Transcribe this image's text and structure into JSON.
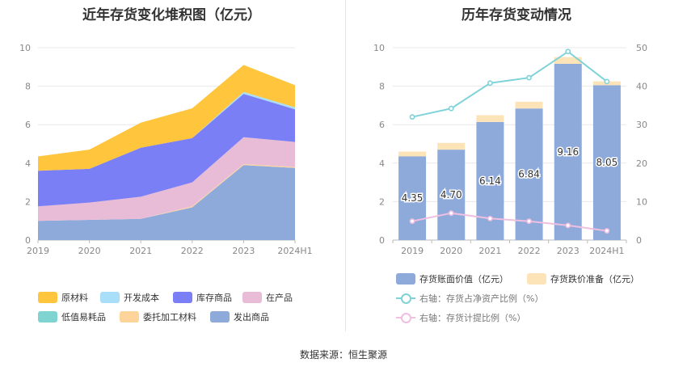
{
  "titles": {
    "left": "近年存货变化堆积图（亿元）",
    "right": "历年存货变动情况"
  },
  "source": "数据来源：恒生聚源",
  "chart_data": [
    {
      "type": "area",
      "title": "近年存货变化堆积图（亿元）",
      "categories": [
        "2019",
        "2020",
        "2021",
        "2022",
        "2023",
        "2024H1"
      ],
      "ylim": [
        0,
        10
      ],
      "yticks": [
        0,
        2,
        4,
        6,
        8,
        10
      ],
      "grid": true,
      "legend_position": "bottom",
      "series": [
        {
          "name": "发出商品",
          "color": "#8eaadb",
          "values": [
            1.0,
            1.05,
            1.1,
            1.7,
            3.9,
            3.75
          ]
        },
        {
          "name": "委托加工材料",
          "color": "#fdd49a",
          "values": [
            0.0,
            0.0,
            0.0,
            0.05,
            0.05,
            0.05
          ]
        },
        {
          "name": "在产品",
          "color": "#e8bcd6",
          "values": [
            0.75,
            0.9,
            1.15,
            1.25,
            1.4,
            1.3
          ]
        },
        {
          "name": "库存商品",
          "color": "#7b7ff5",
          "values": [
            1.85,
            1.75,
            2.55,
            2.3,
            2.25,
            1.7
          ]
        },
        {
          "name": "低值易耗品",
          "color": "#7fd3d0",
          "values": [
            0.0,
            0.0,
            0.0,
            0.0,
            0.0,
            0.0
          ]
        },
        {
          "name": "开发成本",
          "color": "#a8def7",
          "values": [
            0.0,
            0.0,
            0.0,
            0.0,
            0.1,
            0.1
          ]
        },
        {
          "name": "原材料",
          "color": "#fec53d",
          "values": [
            0.75,
            1.0,
            1.3,
            1.55,
            1.4,
            1.15
          ]
        }
      ],
      "legend_order": [
        "原材料",
        "开发成本",
        "库存商品",
        "在产品",
        "低值易耗品",
        "委托加工材料",
        "发出商品"
      ]
    },
    {
      "type": "bar",
      "title": "历年存货变动情况",
      "categories": [
        "2019",
        "2020",
        "2021",
        "2022",
        "2023",
        "2024H1"
      ],
      "ylim": [
        0,
        10
      ],
      "yticks": [
        0,
        2,
        4,
        6,
        8,
        10
      ],
      "y2lim": [
        0,
        50
      ],
      "y2ticks": [
        0,
        10,
        20,
        30,
        40,
        50
      ],
      "grid": true,
      "legend_position": "bottom",
      "series": [
        {
          "name": "存货账面价值（亿元）",
          "type": "bar",
          "stack": "s",
          "color": "#8eaadb",
          "values": [
            4.35,
            4.7,
            6.14,
            6.84,
            9.16,
            8.05
          ],
          "labels": [
            "4.35",
            "4.70",
            "6.14",
            "6.84",
            "9.16",
            "8.05"
          ]
        },
        {
          "name": "存货跌价准备（亿元）",
          "type": "bar",
          "stack": "s",
          "color": "#fde3b8",
          "values": [
            0.25,
            0.35,
            0.35,
            0.35,
            0.35,
            0.2
          ]
        },
        {
          "name": "右轴：存货占净资产比例（%）",
          "type": "line",
          "axis": "right",
          "color": "#7fd3d8",
          "values": [
            32,
            34.2,
            40.8,
            42.2,
            49,
            41.2
          ]
        },
        {
          "name": "右轴：存货计提比例（%）",
          "type": "line",
          "axis": "right",
          "color": "#f0bfe0",
          "values": [
            4.9,
            7.0,
            5.6,
            4.9,
            3.8,
            2.4
          ]
        }
      ]
    }
  ]
}
